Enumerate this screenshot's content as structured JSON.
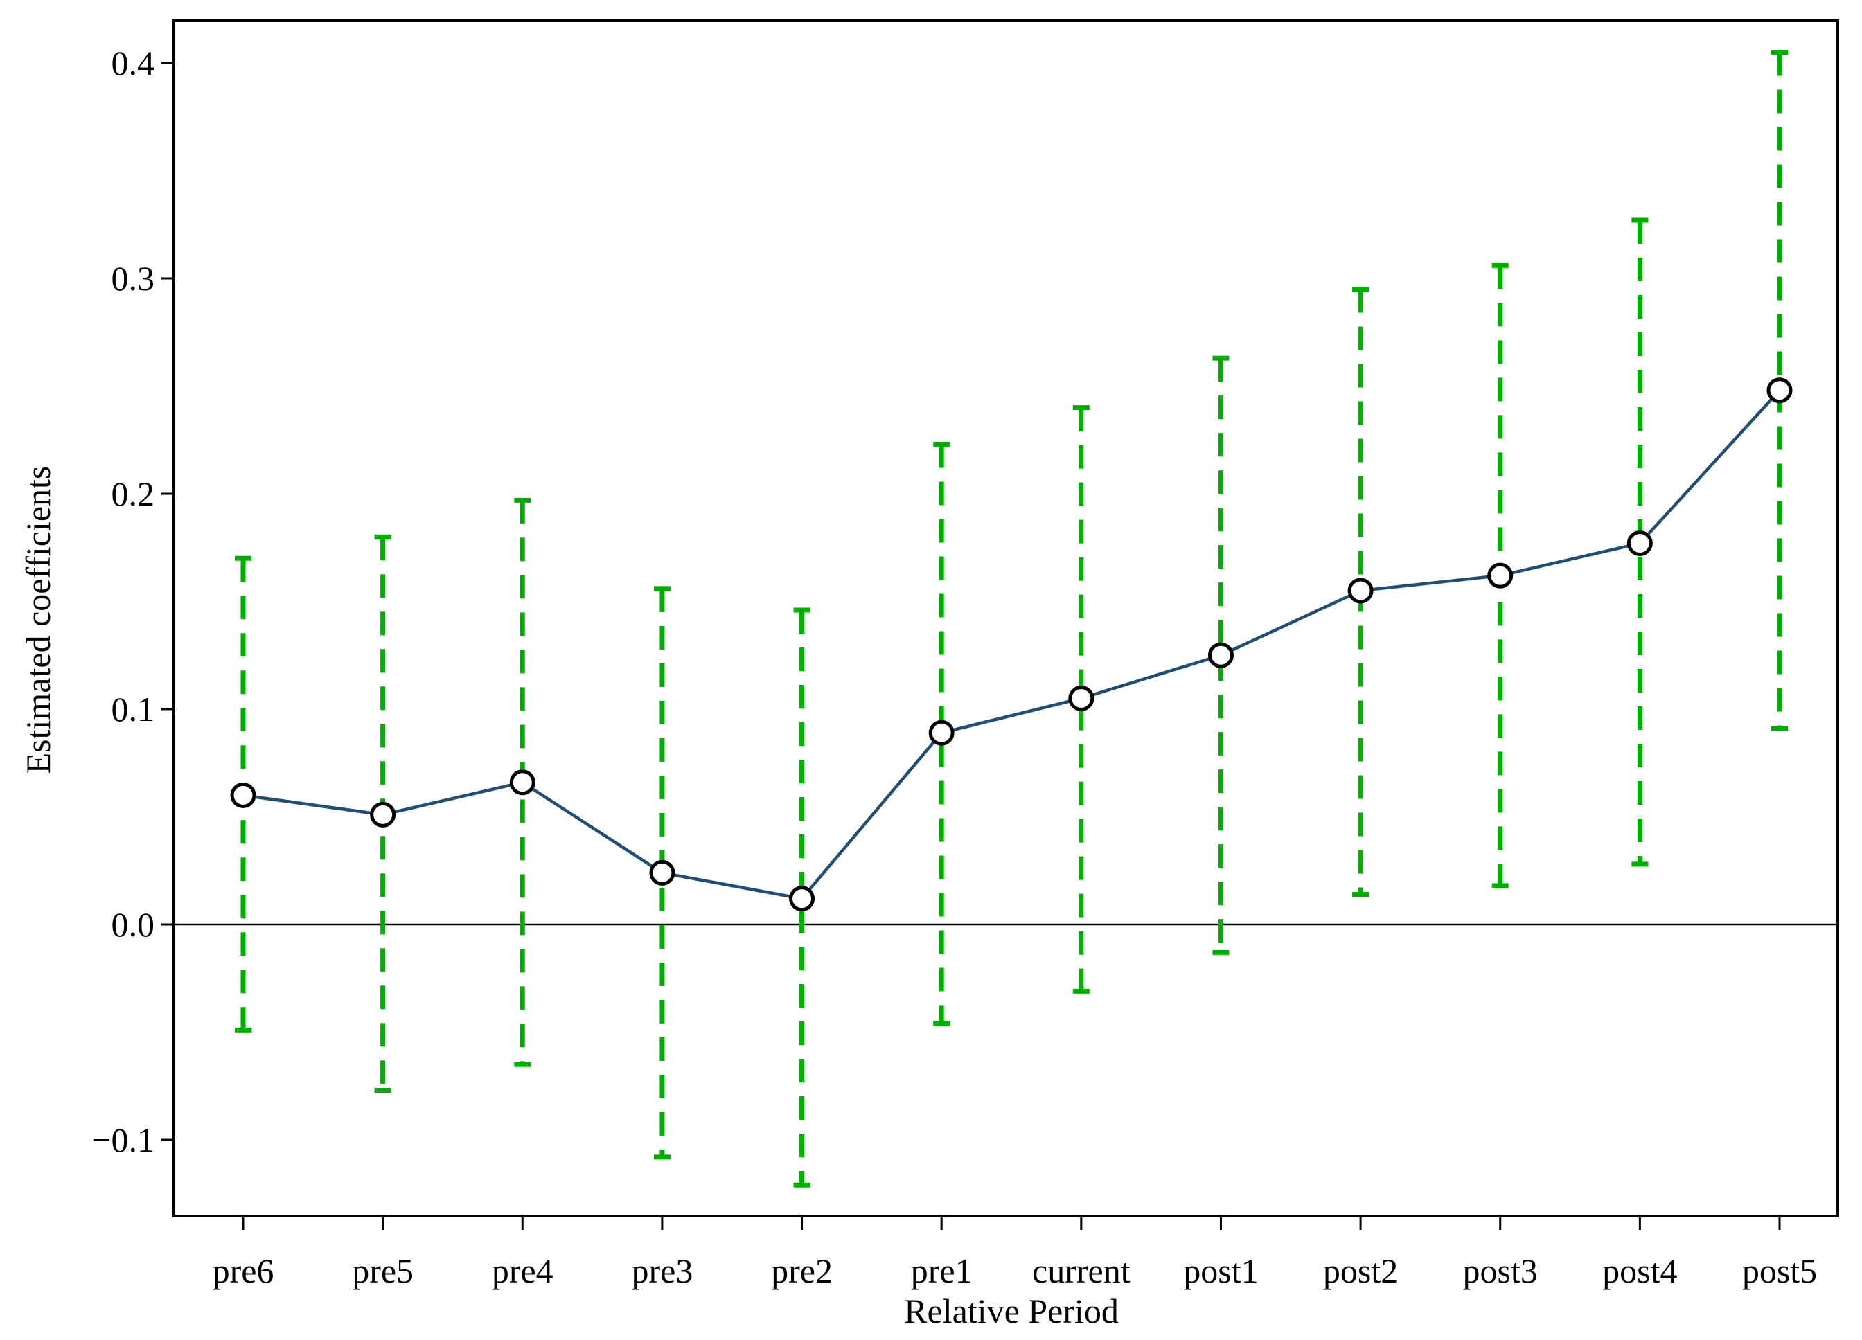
{
  "chart_data": {
    "type": "line",
    "title": "",
    "xlabel": "Relative Period",
    "ylabel": "Estimated coefficients",
    "categories": [
      "pre6",
      "pre5",
      "pre4",
      "pre3",
      "pre2",
      "pre1",
      "current",
      "post1",
      "post2",
      "post3",
      "post4",
      "post5"
    ],
    "series": [
      {
        "values": [
          0.06,
          0.051,
          0.066,
          0.024,
          0.012,
          0.089,
          0.105,
          0.125,
          0.155,
          0.162,
          0.177,
          0.248
        ],
        "ci_lower": [
          -0.049,
          -0.077,
          -0.065,
          -0.108,
          -0.121,
          -0.046,
          -0.031,
          -0.013,
          0.014,
          0.018,
          0.028,
          0.091
        ],
        "ci_upper": [
          0.17,
          0.18,
          0.197,
          0.156,
          0.146,
          0.223,
          0.24,
          0.263,
          0.295,
          0.306,
          0.327,
          0.405
        ]
      }
    ],
    "yticks": [
      -0.1,
      0.0,
      0.1,
      0.2,
      0.3,
      0.4
    ],
    "ytick_labels": [
      "−0.1",
      "0.0",
      "0.1",
      "0.2",
      "0.3",
      "0.4"
    ],
    "ylim": [
      -0.135,
      0.42
    ],
    "reference_line": 0,
    "grid": false,
    "legend": "none",
    "colors": {
      "line": "#1f4e79",
      "marker_edge": "#000000",
      "error_bar": "#00b000",
      "axis": "#000000"
    }
  }
}
